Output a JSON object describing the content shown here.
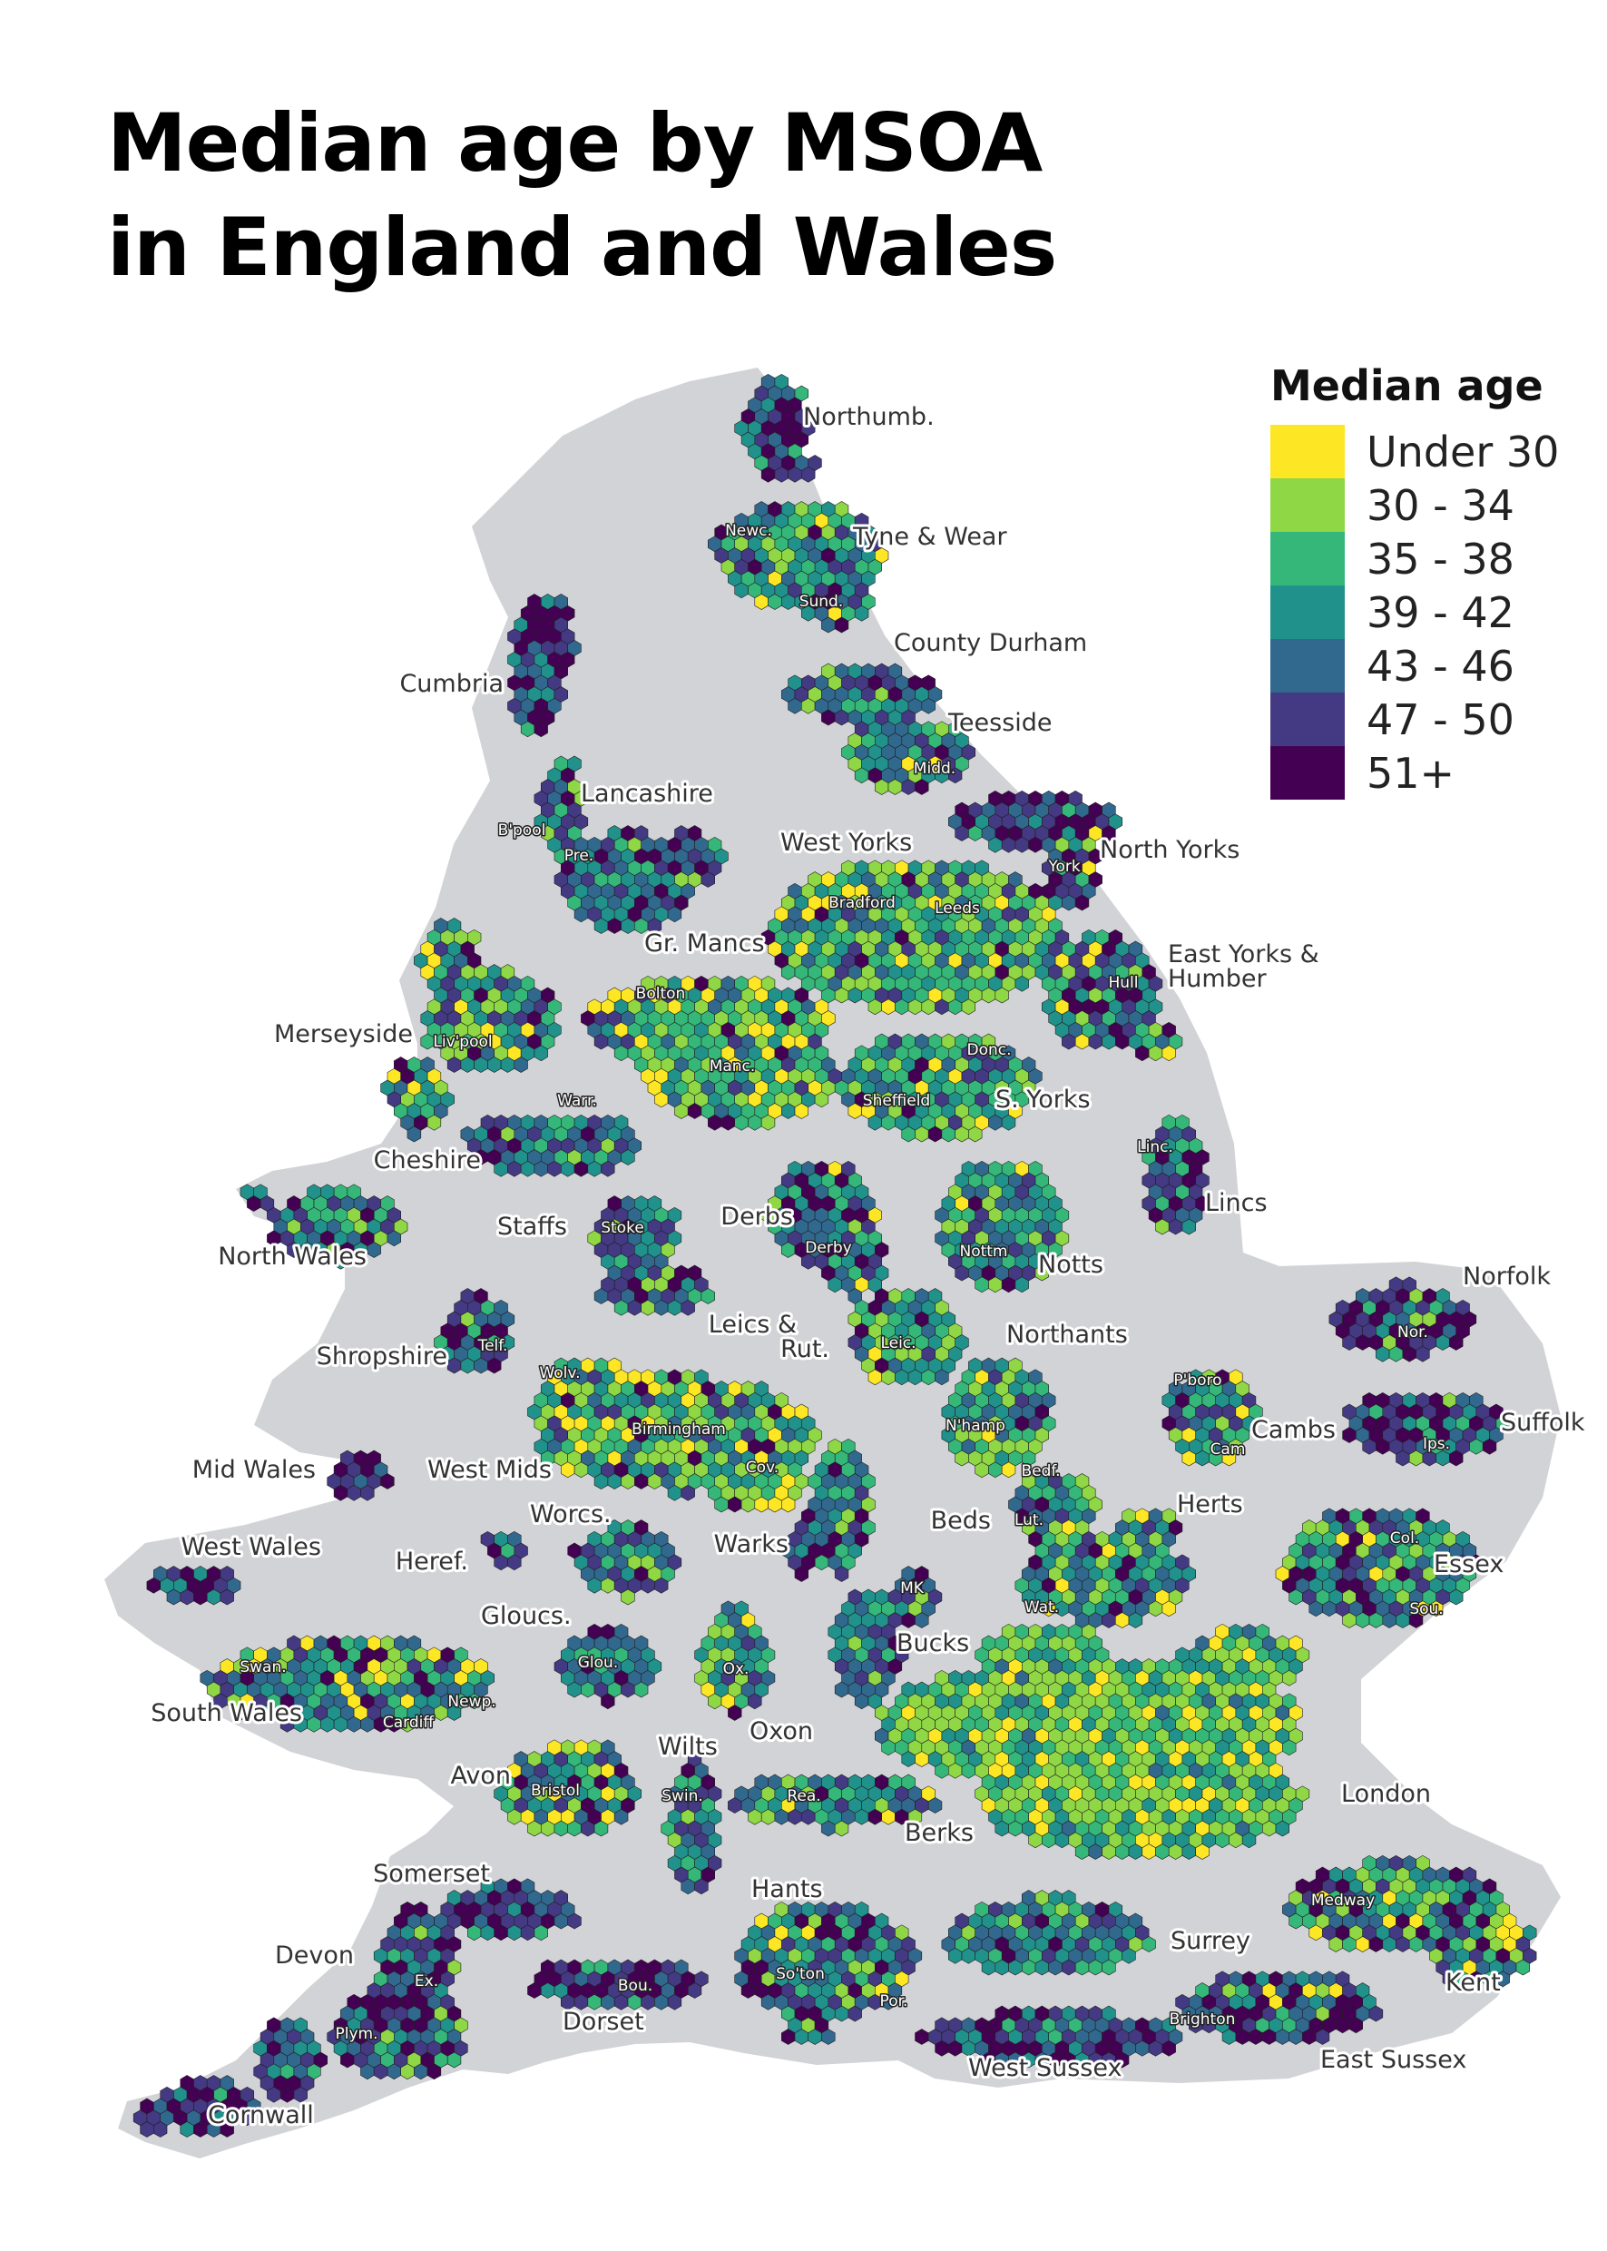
{
  "title_line1": "Median age by MSOA",
  "title_line2": "in England and Wales",
  "legend": {
    "title": "Median age",
    "items": [
      {
        "label": "Under 30",
        "color": "#fde725"
      },
      {
        "label": "30 - 34",
        "color": "#8fd744"
      },
      {
        "label": "35 - 38",
        "color": "#35b779"
      },
      {
        "label": "39 - 42",
        "color": "#21918c"
      },
      {
        "label": "43 - 46",
        "color": "#31688e"
      },
      {
        "label": "47 - 50",
        "color": "#443983"
      },
      {
        "label": "51+",
        "color": "#440154"
      }
    ]
  },
  "colors": {
    "landmass": "#d2d3d6",
    "hex_border": "#1e1e1e"
  },
  "regions": [
    {
      "name": "Northumb.",
      "mix": [
        0,
        0,
        1,
        2,
        4,
        4,
        3
      ]
    },
    {
      "name": "Tyne & Wear",
      "mix": [
        1,
        2,
        3,
        4,
        3,
        2,
        1
      ]
    },
    {
      "name": "County Durham",
      "mix": [
        0,
        1,
        2,
        3,
        4,
        3,
        2
      ]
    },
    {
      "name": "Teesside",
      "mix": [
        1,
        2,
        3,
        3,
        3,
        2,
        1
      ]
    },
    {
      "name": "Cumbria",
      "mix": [
        0,
        0,
        1,
        2,
        3,
        4,
        5
      ]
    },
    {
      "name": "Lancashire",
      "mix": [
        0,
        1,
        2,
        3,
        4,
        3,
        2
      ]
    },
    {
      "name": "West Yorks",
      "mix": [
        2,
        4,
        4,
        3,
        2,
        1,
        1
      ]
    },
    {
      "name": "North Yorks",
      "mix": [
        1,
        1,
        1,
        2,
        3,
        4,
        5
      ]
    },
    {
      "name": "East Yorks & Humber",
      "mix": [
        1,
        1,
        2,
        3,
        3,
        3,
        3
      ]
    },
    {
      "name": "Gr. Mancs",
      "mix": [
        3,
        4,
        4,
        3,
        2,
        1,
        1
      ]
    },
    {
      "name": "Merseyside",
      "mix": [
        2,
        3,
        3,
        3,
        2,
        2,
        1
      ]
    },
    {
      "name": "S. Yorks",
      "mix": [
        1,
        3,
        4,
        3,
        2,
        1,
        1
      ]
    },
    {
      "name": "Cheshire",
      "mix": [
        0,
        1,
        2,
        3,
        4,
        3,
        2
      ]
    },
    {
      "name": "Lincs",
      "mix": [
        0,
        1,
        2,
        2,
        3,
        3,
        3
      ]
    },
    {
      "name": "Derbs",
      "mix": [
        1,
        1,
        2,
        3,
        3,
        2,
        2
      ]
    },
    {
      "name": "Notts",
      "mix": [
        1,
        2,
        3,
        3,
        3,
        2,
        1
      ]
    },
    {
      "name": "Staffs",
      "mix": [
        0,
        1,
        2,
        3,
        4,
        3,
        2
      ]
    },
    {
      "name": "North Wales",
      "mix": [
        0,
        1,
        2,
        3,
        3,
        3,
        3
      ]
    },
    {
      "name": "Norfolk",
      "mix": [
        0,
        1,
        1,
        2,
        3,
        4,
        5
      ]
    },
    {
      "name": "Shropshire",
      "mix": [
        0,
        1,
        2,
        3,
        4,
        3,
        3
      ]
    },
    {
      "name": "Leics & Rut.",
      "mix": [
        1,
        3,
        3,
        3,
        2,
        1,
        1
      ]
    },
    {
      "name": "Northants",
      "mix": [
        1,
        2,
        3,
        3,
        3,
        1,
        1
      ]
    },
    {
      "name": "Cambs",
      "mix": [
        1,
        2,
        3,
        3,
        2,
        2,
        1
      ]
    },
    {
      "name": "Suffolk",
      "mix": [
        0,
        1,
        1,
        2,
        3,
        4,
        4
      ]
    },
    {
      "name": "West Mids",
      "mix": [
        3,
        5,
        4,
        3,
        2,
        1,
        1
      ]
    },
    {
      "name": "Mid Wales",
      "mix": [
        0,
        0,
        1,
        2,
        3,
        4,
        4
      ]
    },
    {
      "name": "Worcs.",
      "mix": [
        0,
        1,
        2,
        3,
        4,
        3,
        2
      ]
    },
    {
      "name": "Warks",
      "mix": [
        0,
        1,
        2,
        3,
        4,
        3,
        2
      ]
    },
    {
      "name": "Beds",
      "mix": [
        1,
        3,
        3,
        3,
        2,
        1,
        1
      ]
    },
    {
      "name": "Herts",
      "mix": [
        1,
        2,
        3,
        4,
        3,
        1,
        1
      ]
    },
    {
      "name": "West Wales",
      "mix": [
        0,
        0,
        1,
        2,
        3,
        4,
        4
      ]
    },
    {
      "name": "Heref.",
      "mix": [
        0,
        0,
        1,
        2,
        3,
        4,
        4
      ]
    },
    {
      "name": "Essex",
      "mix": [
        1,
        2,
        3,
        3,
        3,
        2,
        2
      ]
    },
    {
      "name": "Gloucs.",
      "mix": [
        0,
        1,
        2,
        3,
        4,
        3,
        2
      ]
    },
    {
      "name": "Bucks",
      "mix": [
        0,
        1,
        2,
        3,
        4,
        2,
        1
      ]
    },
    {
      "name": "South Wales",
      "mix": [
        1,
        2,
        3,
        3,
        3,
        2,
        2
      ]
    },
    {
      "name": "Oxon",
      "mix": [
        1,
        2,
        3,
        3,
        3,
        2,
        1
      ]
    },
    {
      "name": "London",
      "mix": [
        2,
        6,
        4,
        3,
        1,
        0,
        0
      ]
    },
    {
      "name": "Wilts",
      "mix": [
        0,
        1,
        2,
        3,
        4,
        3,
        2
      ]
    },
    {
      "name": "Avon",
      "mix": [
        2,
        3,
        3,
        3,
        2,
        1,
        1
      ]
    },
    {
      "name": "Berks",
      "mix": [
        1,
        2,
        3,
        4,
        3,
        1,
        1
      ]
    },
    {
      "name": "Somerset",
      "mix": [
        0,
        0,
        1,
        2,
        3,
        4,
        4
      ]
    },
    {
      "name": "Hants",
      "mix": [
        1,
        2,
        3,
        3,
        3,
        2,
        2
      ]
    },
    {
      "name": "Medway",
      "mix": [
        1,
        2,
        3,
        3,
        3,
        2,
        2
      ]
    },
    {
      "name": "Surrey",
      "mix": [
        0,
        1,
        3,
        4,
        3,
        2,
        1
      ]
    },
    {
      "name": "Kent",
      "mix": [
        1,
        2,
        2,
        3,
        3,
        3,
        3
      ]
    },
    {
      "name": "Devon",
      "mix": [
        0,
        1,
        1,
        2,
        3,
        4,
        4
      ]
    },
    {
      "name": "Dorset",
      "mix": [
        0,
        0,
        1,
        2,
        3,
        4,
        5
      ]
    },
    {
      "name": "West Sussex",
      "mix": [
        0,
        0,
        1,
        2,
        3,
        4,
        4
      ]
    },
    {
      "name": "East Sussex",
      "mix": [
        1,
        1,
        1,
        2,
        3,
        4,
        5
      ]
    },
    {
      "name": "Cornwall",
      "mix": [
        0,
        0,
        1,
        2,
        3,
        4,
        4
      ]
    }
  ],
  "region_labels": [
    "Northumb.",
    "Tyne & Wear",
    "County Durham",
    "Teesside",
    "Cumbria",
    "Lancashire",
    "West Yorks",
    "North Yorks",
    "East Yorks &",
    "Humber",
    "Gr. Mancs",
    "Merseyside",
    "S. Yorks",
    "Cheshire",
    "Lincs",
    "Derbs",
    "Notts",
    "Staffs",
    "North Wales",
    "Norfolk",
    "Shropshire",
    "Leics &",
    "Rut.",
    "Northants",
    "Cambs",
    "Suffolk",
    "West Mids",
    "Mid Wales",
    "Worcs.",
    "Warks",
    "Beds",
    "Herts",
    "West Wales",
    "Heref.",
    "Essex",
    "Gloucs.",
    "Bucks",
    "South Wales",
    "Oxon",
    "London",
    "Wilts",
    "Avon",
    "Berks",
    "Somerset",
    "Hants",
    "Surrey",
    "Kent",
    "Devon",
    "Dorset",
    "West Sussex",
    "East Sussex",
    "Cornwall"
  ],
  "city_labels": [
    "Newc.",
    "Sund.",
    "Midd.",
    "B'pool",
    "Pre.",
    "Bradford",
    "Leeds",
    "York",
    "Hull",
    "Bolton",
    "Manc.",
    "Liv'pool",
    "Donc.",
    "Sheffield",
    "Warr.",
    "Linc.",
    "Stoke",
    "Derby",
    "Nottm",
    "Nor.",
    "Telf.",
    "Leic.",
    "P'boro",
    "Wolv.",
    "Birmingham",
    "Cov.",
    "N'hamp",
    "Cam",
    "Ips.",
    "Bedf.",
    "Lut.",
    "Col.",
    "MK",
    "Wat.",
    "Sou.",
    "Glou.",
    "Ox.",
    "Swan.",
    "Newp.",
    "Cardiff",
    "Bristol",
    "Swin.",
    "Rea.",
    "Medway",
    "So'ton",
    "Ex.",
    "Bou.",
    "Por.",
    "Plym.",
    "Brighton"
  ]
}
